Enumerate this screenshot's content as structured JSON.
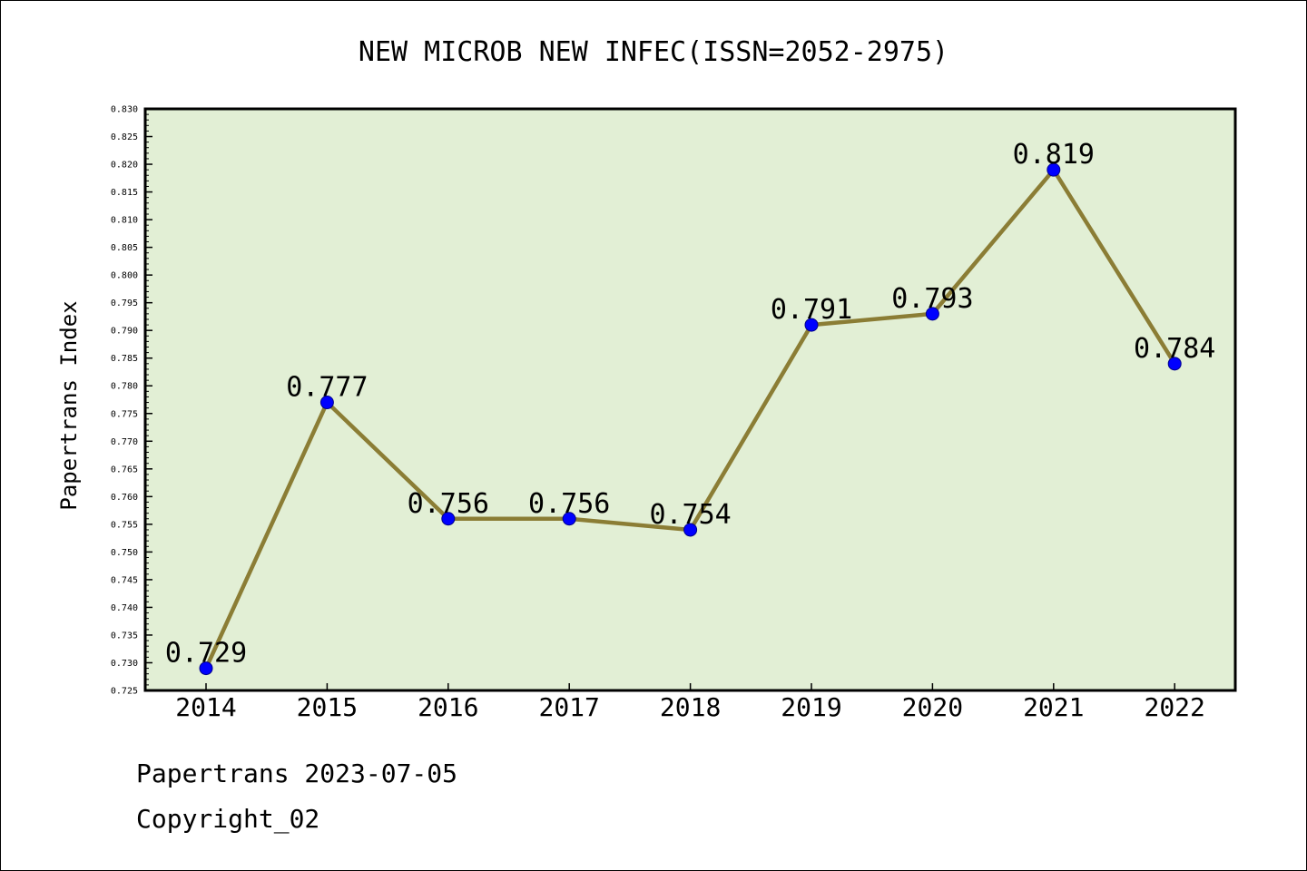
{
  "footer": {
    "date_line": "Papertrans 2023-07-05",
    "copyright": "Copyright_02"
  },
  "colors": {
    "plot_background": "#e2efd5",
    "line": "#8b7d35",
    "marker": "#0000ff",
    "marker_edge": "#00008b"
  },
  "chart_data": {
    "type": "line",
    "title": "NEW MICROB NEW INFEC(ISSN=2052-2975)",
    "xlabel": "",
    "ylabel": "Papertrans Index",
    "categories": [
      "2014",
      "2015",
      "2016",
      "2017",
      "2018",
      "2019",
      "2020",
      "2021",
      "2022"
    ],
    "series": [
      {
        "values": [
          0.729,
          0.777,
          0.756,
          0.756,
          0.754,
          0.791,
          0.793,
          0.819,
          0.784
        ],
        "data_labels": [
          "0.729",
          "0.777",
          "0.756",
          "0.756",
          "0.754",
          "0.791",
          "0.793",
          "0.819",
          "0.784"
        ]
      }
    ],
    "ylim": [
      0.725,
      0.83
    ],
    "yticks": [
      "0.725",
      "0.730",
      "0.735",
      "0.740",
      "0.745",
      "0.750",
      "0.755",
      "0.760",
      "0.765",
      "0.770",
      "0.775",
      "0.780",
      "0.785",
      "0.790",
      "0.795",
      "0.800",
      "0.805",
      "0.810",
      "0.815",
      "0.820",
      "0.825",
      "0.830"
    ],
    "grid": false,
    "legend": "none"
  }
}
